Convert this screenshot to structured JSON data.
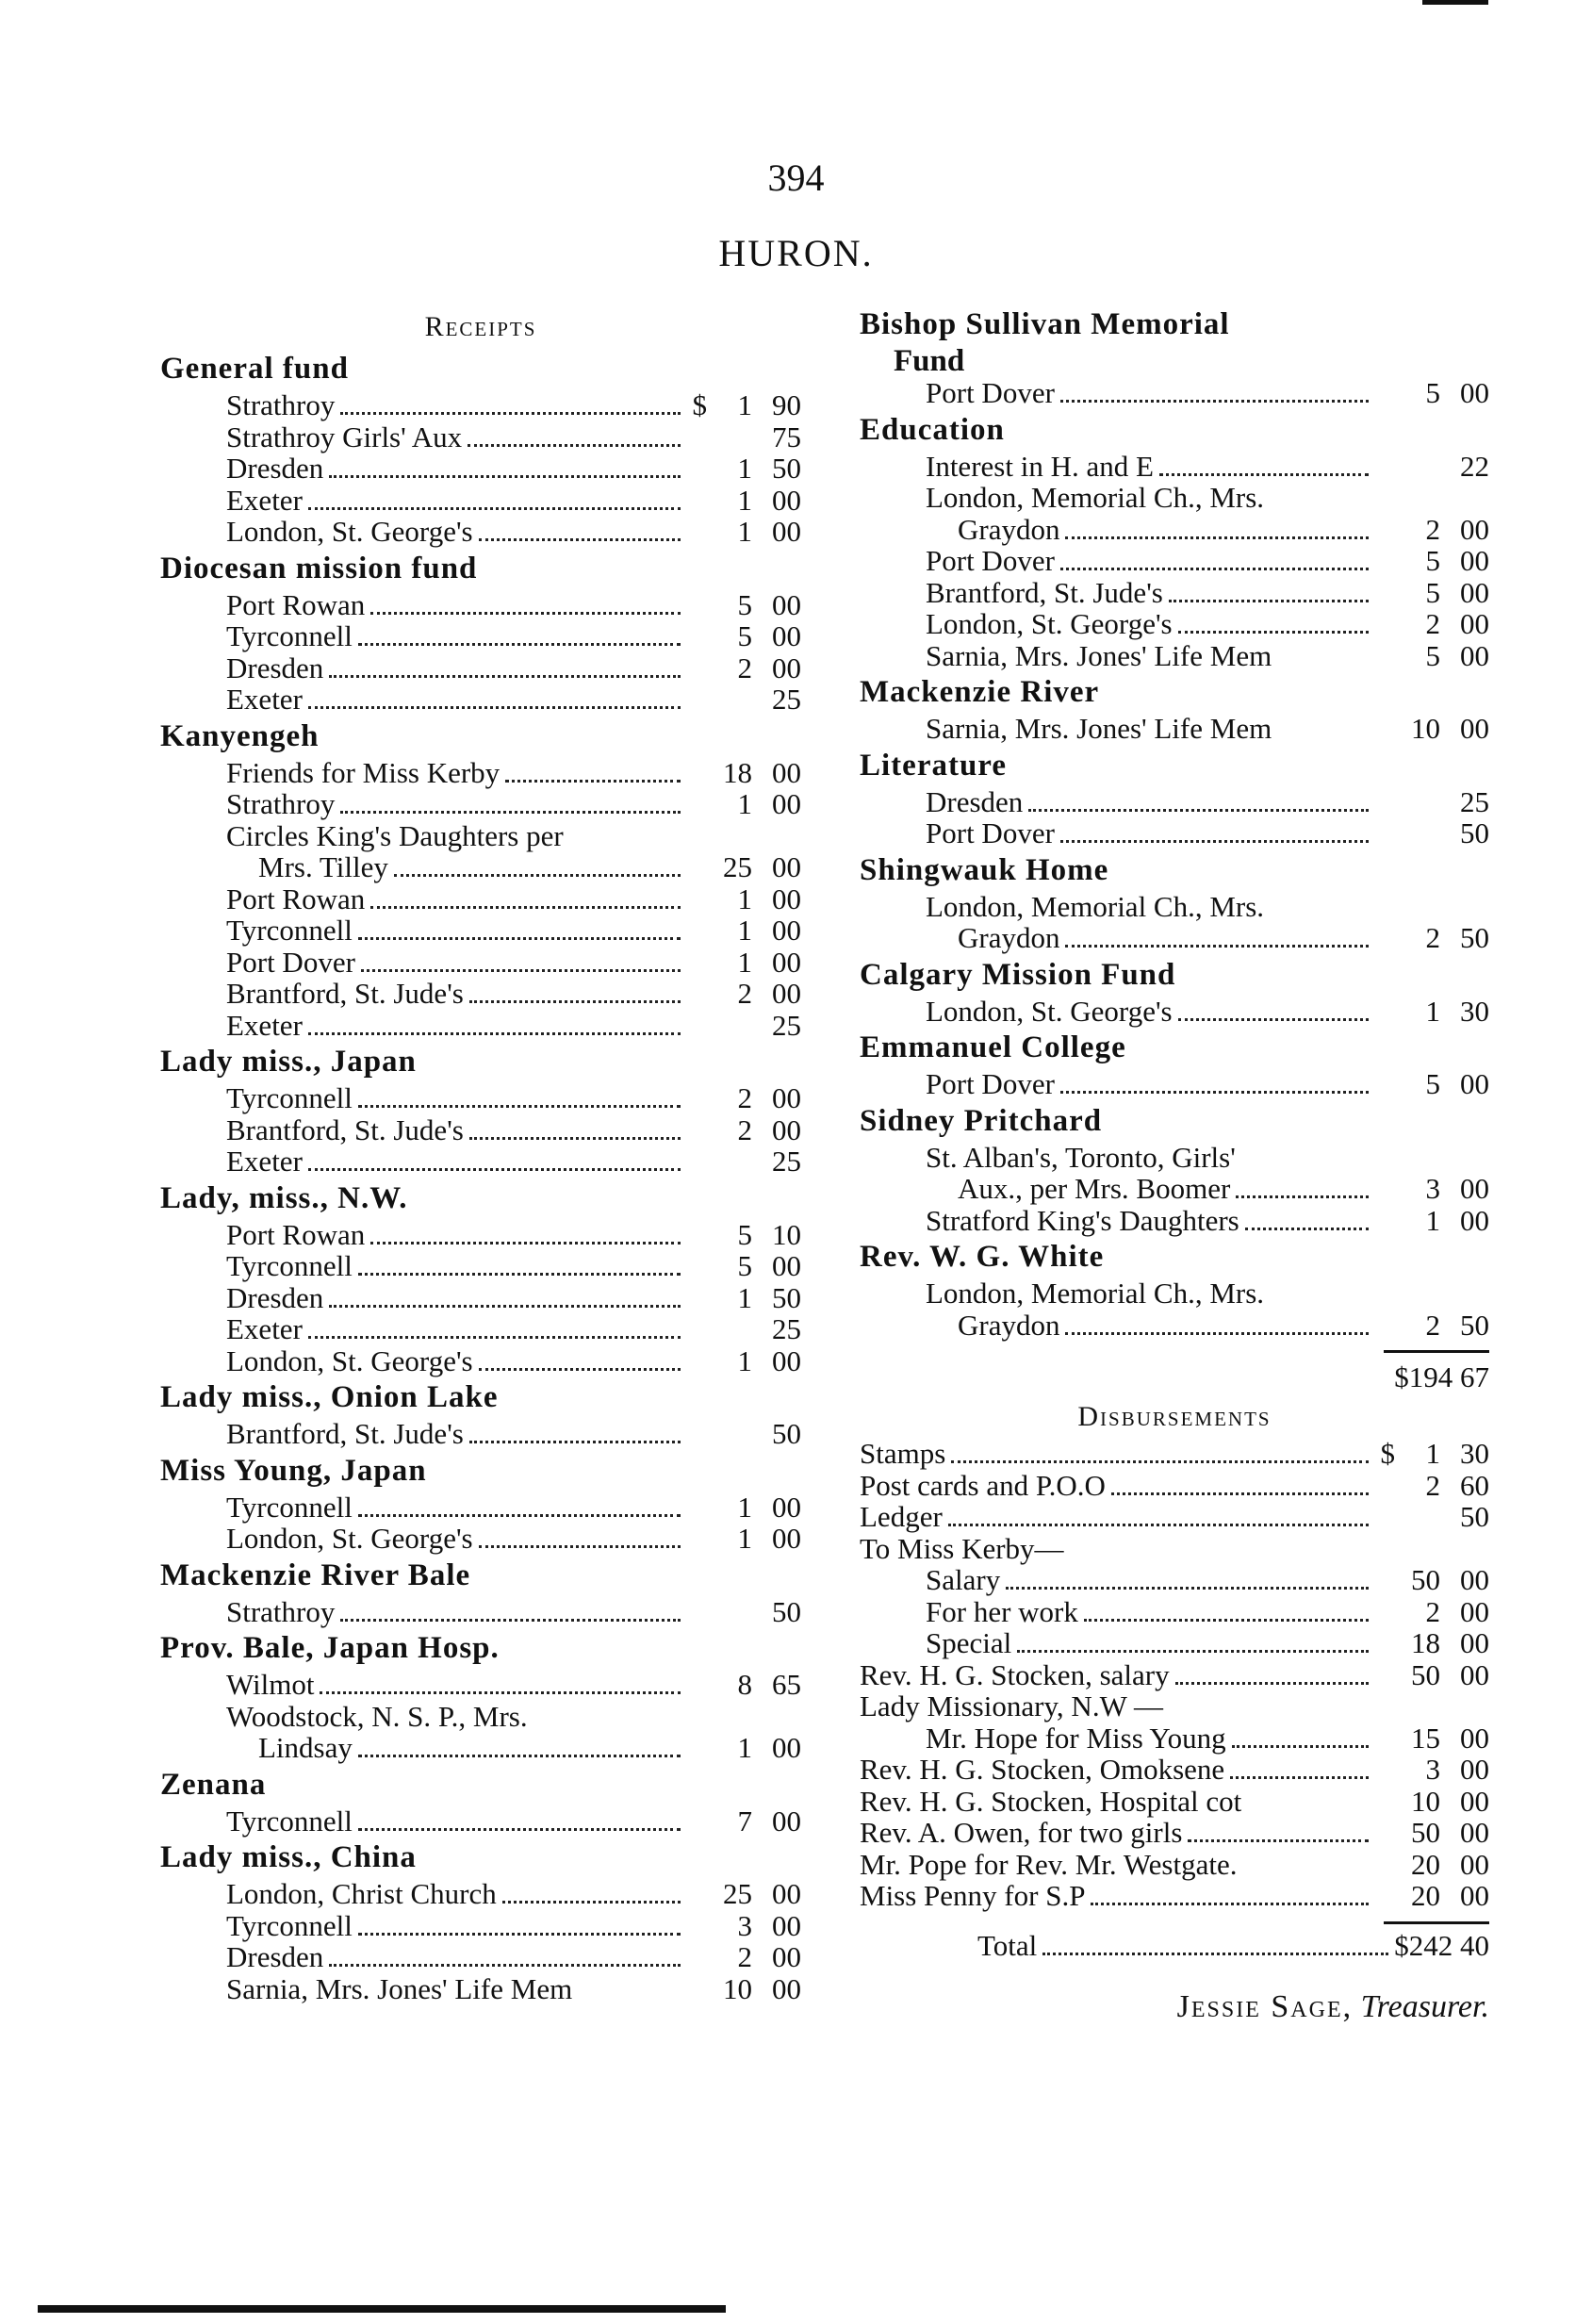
{
  "page_number": "394",
  "title": "HURON.",
  "receipts_label": "Receipts",
  "left_sections": [
    {
      "heading": "General fund",
      "items": [
        {
          "label": "Strathroy",
          "ds": "$",
          "dol": "1",
          "cts": "90"
        },
        {
          "label": "Strathroy Girls' Aux",
          "dol": "",
          "cts": "75"
        },
        {
          "label": "Dresden",
          "dol": "1",
          "cts": "50"
        },
        {
          "label": "Exeter",
          "dol": "1",
          "cts": "00"
        },
        {
          "label": "London, St. George's",
          "dol": "1",
          "cts": "00"
        }
      ]
    },
    {
      "heading": "Diocesan mission fund",
      "items": [
        {
          "label": "Port Rowan",
          "dol": "5",
          "cts": "00"
        },
        {
          "label": "Tyrconnell",
          "dol": "5",
          "cts": "00"
        },
        {
          "label": "Dresden",
          "dol": "2",
          "cts": "00"
        },
        {
          "label": "Exeter",
          "dol": "",
          "cts": "25"
        }
      ]
    },
    {
      "heading": "Kanyengeh",
      "items": [
        {
          "label": "Friends for Miss Kerby",
          "dol": "18",
          "cts": "00"
        },
        {
          "label": "Strathroy",
          "dol": "1",
          "cts": "00"
        },
        {
          "label": "Circles King's Daughters per",
          "noamt": true
        },
        {
          "label": "Mrs. Tilley",
          "dol": "25",
          "cts": "00",
          "cont": true
        },
        {
          "label": "Port Rowan",
          "dol": "1",
          "cts": "00"
        },
        {
          "label": "Tyrconnell",
          "dol": "1",
          "cts": "00"
        },
        {
          "label": "Port Dover",
          "dol": "1",
          "cts": "00"
        },
        {
          "label": "Brantford, St. Jude's",
          "dol": "2",
          "cts": "00"
        },
        {
          "label": "Exeter",
          "dol": "",
          "cts": "25"
        }
      ]
    },
    {
      "heading": "Lady miss., Japan",
      "items": [
        {
          "label": "Tyrconnell",
          "dol": "2",
          "cts": "00"
        },
        {
          "label": "Brantford, St. Jude's",
          "dol": "2",
          "cts": "00"
        },
        {
          "label": "Exeter",
          "dol": "",
          "cts": "25"
        }
      ]
    },
    {
      "heading": "Lady, miss., N.W.",
      "items": [
        {
          "label": "Port Rowan",
          "dol": "5",
          "cts": "10"
        },
        {
          "label": "Tyrconnell",
          "dol": "5",
          "cts": "00"
        },
        {
          "label": "Dresden",
          "dol": "1",
          "cts": "50"
        },
        {
          "label": "Exeter",
          "dol": "",
          "cts": "25"
        },
        {
          "label": "London, St. George's",
          "dol": "1",
          "cts": "00"
        }
      ]
    },
    {
      "heading": "Lady miss., Onion Lake",
      "items": [
        {
          "label": "Brantford, St. Jude's",
          "dol": "",
          "cts": "50"
        }
      ]
    },
    {
      "heading": "Miss Young, Japan",
      "items": [
        {
          "label": "Tyrconnell",
          "dol": "1",
          "cts": "00"
        },
        {
          "label": "London, St. George's",
          "dol": "1",
          "cts": "00"
        }
      ]
    },
    {
      "heading": "Mackenzie River Bale",
      "items": [
        {
          "label": "Strathroy",
          "dol": "",
          "cts": "50"
        }
      ]
    },
    {
      "heading": "Prov. Bale, Japan Hosp.",
      "items": [
        {
          "label": "Wilmot",
          "dol": "8",
          "cts": "65"
        },
        {
          "label": "Woodstock, N. S. P., Mrs.",
          "noamt": true
        },
        {
          "label": "Lindsay",
          "dol": "1",
          "cts": "00",
          "cont": true
        }
      ]
    },
    {
      "heading": "Zenana",
      "items": [
        {
          "label": "Tyrconnell",
          "dol": "7",
          "cts": "00"
        }
      ]
    },
    {
      "heading": "Lady miss., China",
      "items": [
        {
          "label": "London, Christ Church",
          "dol": "25",
          "cts": "00"
        },
        {
          "label": "Tyrconnell",
          "dol": "3",
          "cts": "00"
        },
        {
          "label": "Dresden",
          "dol": "2",
          "cts": "00"
        },
        {
          "label": "Sarnia, Mrs. Jones' Life Mem",
          "dol": "10",
          "cts": "00",
          "nolead": true
        }
      ]
    }
  ],
  "right_sections": [
    {
      "heading": "Bishop Sullivan Memorial",
      "heading2": "Fund",
      "items": [
        {
          "label": "Port Dover",
          "dol": "5",
          "cts": "00"
        }
      ]
    },
    {
      "heading": "Education",
      "items": [
        {
          "label": "Interest in H. and E",
          "dol": "",
          "cts": "22"
        },
        {
          "label": "London, Memorial Ch., Mrs.",
          "noamt": true
        },
        {
          "label": "Graydon",
          "dol": "2",
          "cts": "00",
          "cont": true
        },
        {
          "label": "Port Dover",
          "dol": "5",
          "cts": "00"
        },
        {
          "label": "Brantford, St. Jude's",
          "dol": "5",
          "cts": "00"
        },
        {
          "label": "London, St. George's",
          "dol": "2",
          "cts": "00"
        },
        {
          "label": "Sarnia, Mrs. Jones' Life Mem",
          "dol": "5",
          "cts": "00",
          "nolead": true
        }
      ]
    },
    {
      "heading": "Mackenzie River",
      "items": [
        {
          "label": "Sarnia, Mrs. Jones' Life Mem",
          "dol": "10",
          "cts": "00",
          "nolead": true
        }
      ]
    },
    {
      "heading": "Literature",
      "items": [
        {
          "label": "Dresden",
          "dol": "",
          "cts": "25"
        },
        {
          "label": "Port Dover",
          "dol": "",
          "cts": "50"
        }
      ]
    },
    {
      "heading": "Shingwauk Home",
      "items": [
        {
          "label": "London, Memorial Ch., Mrs.",
          "noamt": true
        },
        {
          "label": "Graydon",
          "dol": "2",
          "cts": "50",
          "cont": true
        }
      ]
    },
    {
      "heading": "Calgary Mission Fund",
      "items": [
        {
          "label": "London, St. George's",
          "dol": "1",
          "cts": "30"
        }
      ]
    },
    {
      "heading": "Emmanuel College",
      "items": [
        {
          "label": "Port Dover",
          "dol": "5",
          "cts": "00"
        }
      ]
    },
    {
      "heading": "Sidney Pritchard",
      "items": [
        {
          "label": "St. Alban's, Toronto, Girls'",
          "noamt": true
        },
        {
          "label": "Aux., per Mrs. Boomer",
          "dol": "3",
          "cts": "00",
          "cont": true
        },
        {
          "label": "Stratford King's Daughters",
          "dol": "1",
          "cts": "00"
        }
      ]
    },
    {
      "heading": "Rev. W. G. White",
      "items": [
        {
          "label": "London, Memorial Ch., Mrs.",
          "noamt": true
        },
        {
          "label": "Graydon",
          "dol": "2",
          "cts": "50",
          "cont": true
        }
      ]
    }
  ],
  "receipts_total": "$194 67",
  "disbursements_label": "Disbursements",
  "disbursements": [
    {
      "label": "Stamps",
      "ds": "$",
      "dol": "1",
      "cts": "30"
    },
    {
      "label": "Post cards and P.O.O",
      "dol": "2",
      "cts": "60"
    },
    {
      "label": "Ledger",
      "dol": "",
      "cts": "50"
    },
    {
      "label": "To Miss Kerby—",
      "noamt": true
    },
    {
      "label": "Salary",
      "dol": "50",
      "cts": "00",
      "sub": true
    },
    {
      "label": "For her work",
      "dol": "2",
      "cts": "00",
      "sub": true
    },
    {
      "label": "Special",
      "dol": "18",
      "cts": "00",
      "sub": true
    },
    {
      "label": "Rev. H. G. Stocken, salary",
      "dol": "50",
      "cts": "00"
    },
    {
      "label": "Lady Missionary, N.W —",
      "noamt": true
    },
    {
      "label": "Mr. Hope for Miss Young",
      "dol": "15",
      "cts": "00",
      "sub": true
    },
    {
      "label": "Rev. H. G. Stocken, Omoksene",
      "dol": "3",
      "cts": "00"
    },
    {
      "label": "Rev. H. G. Stocken, Hospital cot",
      "dol": "10",
      "cts": "00",
      "nolead": true
    },
    {
      "label": "Rev. A. Owen, for two girls",
      "dol": "50",
      "cts": "00"
    },
    {
      "label": "Mr. Pope for Rev. Mr. Westgate.",
      "dol": "20",
      "cts": "00",
      "nolead": true
    },
    {
      "label": "Miss Penny for S.P",
      "dol": "20",
      "cts": "00"
    }
  ],
  "total_label": "Total",
  "total_value": "$242 40",
  "signature_name": "Jessie Sage,",
  "signature_title": "Treasurer."
}
